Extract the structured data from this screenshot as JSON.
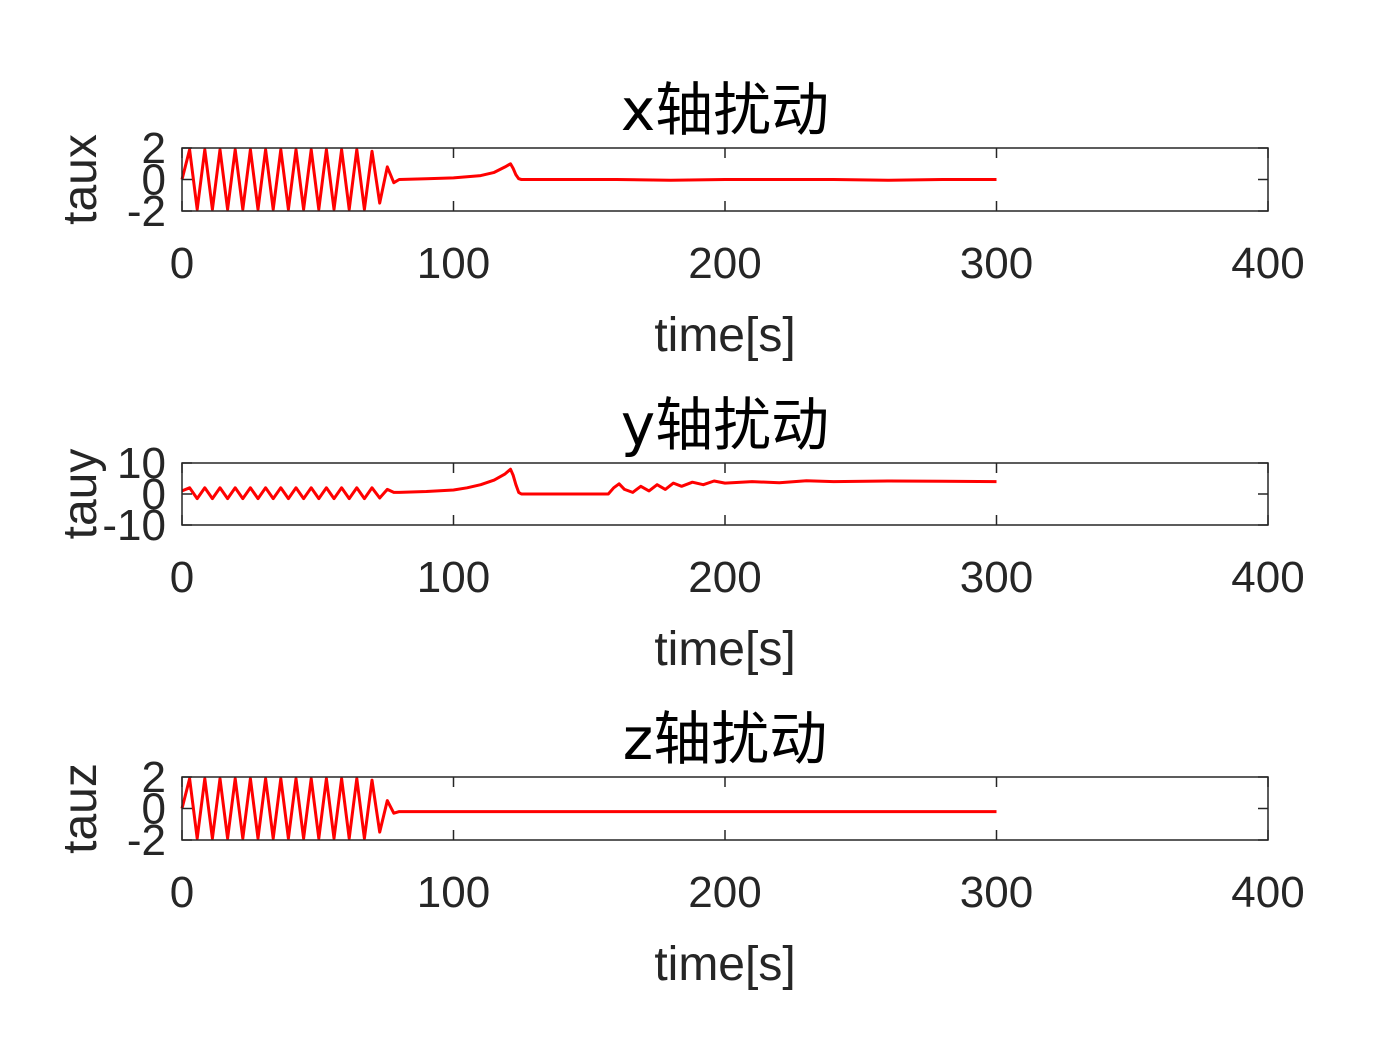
{
  "chart_data": [
    {
      "type": "line",
      "title": "x轴扰动",
      "xlabel": "time[s]",
      "ylabel": "taux",
      "xlim": [
        0,
        400
      ],
      "ylim": [
        -2,
        2
      ],
      "xticks": [
        "0",
        "100",
        "200",
        "300",
        "400"
      ],
      "yticks": [
        "-2",
        "0",
        "2"
      ],
      "grid": false,
      "color": "#ff0000",
      "series": [
        {
          "x": [
            0,
            2.8,
            5.6,
            8.4,
            11.2,
            14,
            16.8,
            19.6,
            22.4,
            25.2,
            28,
            30.8,
            33.6,
            36.4,
            39.2,
            42,
            44.8,
            47.6,
            50.4,
            53.2,
            56,
            58.8,
            61.6,
            64.4,
            67.2,
            70,
            72.8,
            75.6,
            78,
            80,
            90,
            100,
            110,
            115,
            119,
            121,
            122,
            123,
            124,
            125,
            140,
            160,
            180,
            200,
            220,
            240,
            260,
            280,
            300
          ],
          "y": [
            0,
            1.9,
            -1.9,
            1.9,
            -1.9,
            1.9,
            -1.9,
            1.9,
            -1.9,
            1.9,
            -1.9,
            1.9,
            -1.9,
            1.9,
            -1.9,
            1.9,
            -1.9,
            1.9,
            -1.9,
            1.9,
            -1.9,
            1.9,
            -1.9,
            1.9,
            -1.9,
            1.8,
            -1.5,
            0.8,
            -0.2,
            0,
            0.05,
            0.1,
            0.25,
            0.45,
            0.8,
            1.0,
            0.7,
            0.3,
            0.05,
            0,
            0,
            0,
            -0.05,
            0,
            0,
            0,
            -0.05,
            0,
            0
          ]
        }
      ]
    },
    {
      "type": "line",
      "title": "y轴扰动",
      "xlabel": "time[s]",
      "ylabel": "tauy",
      "xlim": [
        0,
        400
      ],
      "ylim": [
        -10,
        10
      ],
      "xticks": [
        "0",
        "100",
        "200",
        "300",
        "400"
      ],
      "yticks": [
        "-10",
        "0",
        "10"
      ],
      "grid": false,
      "color": "#ff0000",
      "series": [
        {
          "x": [
            0,
            2.8,
            5.6,
            8.4,
            11.2,
            14,
            16.8,
            19.6,
            22.4,
            25.2,
            28,
            30.8,
            33.6,
            36.4,
            39.2,
            42,
            44.8,
            47.6,
            50.4,
            53.2,
            56,
            58.8,
            61.6,
            64.4,
            67.2,
            70,
            72.8,
            75.6,
            78,
            80,
            90,
            100,
            105,
            110,
            115,
            119,
            121,
            122,
            123,
            124,
            125,
            140,
            157,
            159,
            161,
            163,
            166,
            169,
            172,
            175,
            178,
            181,
            184,
            188,
            192,
            196,
            200,
            210,
            220,
            230,
            240,
            260,
            280,
            300
          ],
          "y": [
            1,
            2,
            -1.5,
            2,
            -1.5,
            2,
            -1.5,
            2,
            -1.5,
            2,
            -1.5,
            2,
            -1.5,
            2,
            -1.5,
            2,
            -1.5,
            2,
            -1.5,
            2,
            -1.5,
            2,
            -1.5,
            2,
            -1.5,
            2,
            -1.3,
            1.5,
            0.5,
            0.5,
            0.8,
            1.3,
            2,
            3,
            4.5,
            6.5,
            8,
            6,
            3,
            0.5,
            0,
            0,
            0,
            2,
            3.3,
            1.5,
            0.5,
            2.5,
            1,
            3,
            1.5,
            3.5,
            2.5,
            3.8,
            3,
            4.2,
            3.5,
            4,
            3.6,
            4.3,
            4,
            4.2,
            4.1,
            4
          ]
        }
      ]
    },
    {
      "type": "line",
      "title": "z轴扰动",
      "xlabel": "time[s]",
      "ylabel": "tauz",
      "xlim": [
        0,
        400
      ],
      "ylim": [
        -2,
        2
      ],
      "xticks": [
        "0",
        "100",
        "200",
        "300",
        "400"
      ],
      "yticks": [
        "-2",
        "0",
        "2"
      ],
      "grid": false,
      "color": "#ff0000",
      "series": [
        {
          "x": [
            0,
            2.8,
            5.6,
            8.4,
            11.2,
            14,
            16.8,
            19.6,
            22.4,
            25.2,
            28,
            30.8,
            33.6,
            36.4,
            39.2,
            42,
            44.8,
            47.6,
            50.4,
            53.2,
            56,
            58.8,
            61.6,
            64.4,
            67.2,
            70,
            72.8,
            75.6,
            78,
            80,
            100,
            150,
            200,
            250,
            300
          ],
          "y": [
            0,
            1.9,
            -1.9,
            1.9,
            -1.9,
            1.9,
            -1.9,
            1.9,
            -1.9,
            1.9,
            -1.9,
            1.9,
            -1.9,
            1.9,
            -1.9,
            1.9,
            -1.9,
            1.9,
            -1.9,
            1.9,
            -1.9,
            1.9,
            -1.9,
            1.9,
            -1.9,
            1.8,
            -1.5,
            0.5,
            -0.3,
            -0.2,
            -0.2,
            -0.2,
            -0.2,
            -0.2,
            -0.2
          ]
        }
      ]
    }
  ]
}
